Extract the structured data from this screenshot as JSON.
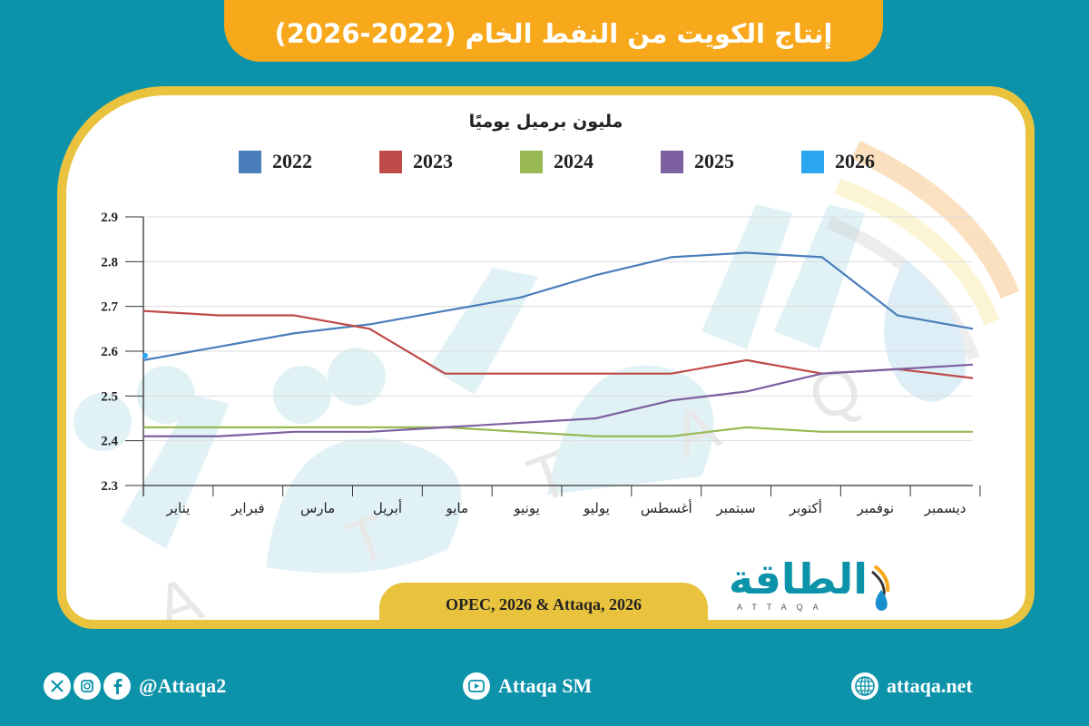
{
  "header": {
    "title": "إنتاج الكويت من النفط الخام (2022-2026)"
  },
  "chart_data": {
    "type": "line",
    "title": "إنتاج الكويت من النفط الخام (2022-2026)",
    "ylabel": "مليون برميل يوميًا",
    "xlabel": "",
    "ylim": [
      2.3,
      2.9
    ],
    "yticks": [
      "2.9",
      "2.8",
      "2.7",
      "2.6",
      "2.5",
      "2.4",
      "2.3"
    ],
    "grid": true,
    "legend_position": "top",
    "categories": [
      "يناير",
      "فبراير",
      "مارس",
      "أبريل",
      "مايو",
      "يونيو",
      "يوليو",
      "أغسطس",
      "سبتمبر",
      "أكتوبر",
      "نوفمبر",
      "ديسمبر"
    ],
    "series": [
      {
        "name": "2022",
        "color": "#4a7ebb",
        "values": [
          2.58,
          2.61,
          2.64,
          2.66,
          2.69,
          2.72,
          2.77,
          2.81,
          2.82,
          2.81,
          2.68,
          2.65
        ]
      },
      {
        "name": "2023",
        "color": "#be4b48",
        "values": [
          2.69,
          2.68,
          2.68,
          2.65,
          2.55,
          2.55,
          2.55,
          2.55,
          2.58,
          2.55,
          2.56,
          2.54
        ]
      },
      {
        "name": "2024",
        "color": "#98b954",
        "values": [
          2.43,
          2.43,
          2.43,
          2.43,
          2.43,
          2.42,
          2.41,
          2.41,
          2.43,
          2.42,
          2.42,
          2.42
        ]
      },
      {
        "name": "2025",
        "color": "#7d60a0",
        "values": [
          2.41,
          2.41,
          2.42,
          2.42,
          2.43,
          2.44,
          2.45,
          2.49,
          2.51,
          2.55,
          2.56,
          2.57
        ]
      },
      {
        "name": "2026",
        "color": "#2aa7f0",
        "values": [
          2.59
        ]
      }
    ]
  },
  "source": {
    "text": "OPEC, 2026 & Attaqa, 2026"
  },
  "logo": {
    "arabic": "الطاقة",
    "english": "ATTAQA"
  },
  "footer": {
    "social_handle": "@Attaqa2",
    "youtube": "Attaqa SM",
    "website": "attaqa.net"
  },
  "colors": {
    "background": "#0c93aa",
    "title_tab": "#f7a81b",
    "card_border": "#e9c33e"
  }
}
